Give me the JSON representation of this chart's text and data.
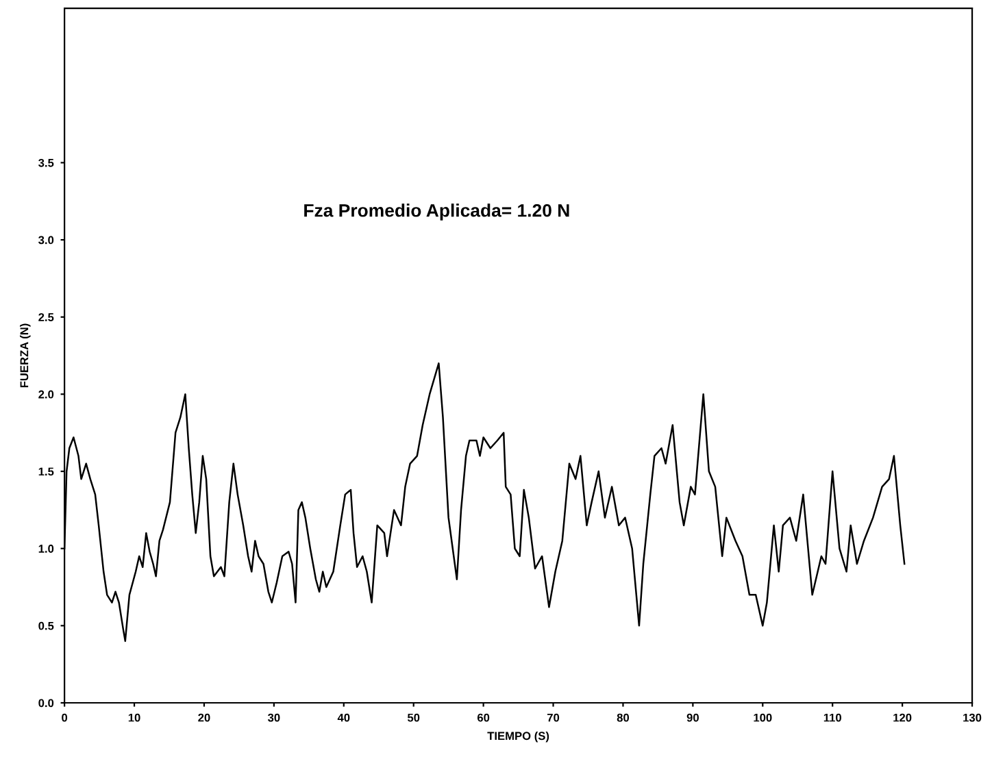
{
  "chart_data": {
    "type": "line",
    "xlabel": "TIEMPO (S)",
    "ylabel": "FUERZA (N)",
    "annotations": [
      "Fza Promedio Aplicada= 1.20 N"
    ],
    "xlim": [
      0,
      130
    ],
    "xticks": [
      0,
      10,
      20,
      30,
      40,
      50,
      60,
      70,
      80,
      90,
      100,
      110,
      120,
      130
    ],
    "ylim": [
      0,
      4.5
    ],
    "yticks": [
      {
        "value": 0,
        "label": "0.0"
      },
      {
        "value": 0.5,
        "label": "0.5"
      },
      {
        "value": 1,
        "label": "1.0"
      },
      {
        "value": 1.5,
        "label": "1.5"
      },
      {
        "value": 2,
        "label": "2.0"
      },
      {
        "value": 2.5,
        "label": "2.5"
      },
      {
        "value": 3,
        "label": "3.0"
      },
      {
        "value": 3.5,
        "label": "3.5"
      }
    ],
    "grid": false,
    "legend": false,
    "marker": "none",
    "line_style": "solid",
    "series": [
      {
        "color": "#000000",
        "x": [
          0,
          0.3,
          0.7,
          1.3,
          2,
          2.4,
          3.1,
          3.7,
          4.4,
          4.9,
          5.6,
          6.1,
          6.8,
          7.3,
          7.8,
          8.4,
          8.7,
          9.3,
          10.2,
          10.7,
          11.2,
          11.7,
          12.2,
          12.7,
          13.1,
          13.6,
          14.1,
          15.1,
          15.9,
          16.6,
          17.3,
          17.8,
          18.3,
          18.8,
          19.3,
          19.8,
          20.3,
          20.9,
          21.4,
          21.9,
          22.4,
          22.9,
          23.6,
          24.2,
          24.8,
          25.6,
          26.3,
          26.8,
          27.3,
          27.8,
          28.5,
          29.2,
          29.7,
          30.4,
          31.2,
          32.1,
          32.6,
          33.1,
          33.5,
          34,
          34.5,
          35.2,
          36,
          36.5,
          37,
          37.5,
          38,
          38.5,
          39,
          39.5,
          40.2,
          41,
          41.4,
          41.9,
          42.7,
          43.3,
          44,
          44.8,
          45.8,
          46.2,
          47.2,
          48.2,
          48.8,
          49.5,
          50.5,
          51.3,
          52.3,
          53.6,
          54.2,
          55,
          56.2,
          56.8,
          57.5,
          58,
          59,
          59.5,
          60,
          61,
          62,
          62.9,
          63.2,
          63.9,
          64.5,
          65.2,
          65.8,
          66.5,
          67.4,
          68.4,
          69.4,
          70.3,
          71.3,
          72.3,
          73.2,
          73.9,
          74.8,
          75.5,
          76.5,
          77.4,
          78.4,
          79.4,
          80.3,
          81.3,
          81.9,
          82.3,
          82.9,
          83.9,
          84.5,
          85.5,
          86.1,
          87.1,
          88.1,
          88.7,
          89.7,
          90.3,
          91.5,
          92.3,
          93.2,
          94.2,
          94.8,
          96.1,
          97.1,
          98.1,
          99,
          100,
          100.6,
          101.6,
          102.3,
          102.9,
          103.9,
          104.8,
          105.8,
          107.1,
          108.4,
          109,
          110,
          111,
          112,
          112.6,
          113.5,
          114.5,
          115.8,
          117.1,
          118.1,
          118.8,
          119.7,
          120.3
        ],
        "values": [
          1.0,
          1.5,
          1.65,
          1.72,
          1.6,
          1.45,
          1.55,
          1.45,
          1.35,
          1.15,
          0.85,
          0.7,
          0.65,
          0.72,
          0.65,
          0.48,
          0.4,
          0.7,
          0.85,
          0.95,
          0.88,
          1.1,
          0.98,
          0.9,
          0.82,
          1.05,
          1.12,
          1.3,
          1.75,
          1.85,
          2.0,
          1.65,
          1.35,
          1.1,
          1.3,
          1.6,
          1.45,
          0.95,
          0.82,
          0.85,
          0.88,
          0.82,
          1.3,
          1.55,
          1.35,
          1.15,
          0.95,
          0.85,
          1.05,
          0.95,
          0.9,
          0.72,
          0.65,
          0.78,
          0.95,
          0.98,
          0.9,
          0.65,
          1.25,
          1.3,
          1.2,
          1.0,
          0.8,
          0.72,
          0.85,
          0.75,
          0.8,
          0.85,
          1.0,
          1.15,
          1.35,
          1.38,
          1.1,
          0.88,
          0.95,
          0.85,
          0.65,
          1.15,
          1.1,
          0.95,
          1.25,
          1.15,
          1.4,
          1.55,
          1.6,
          1.8,
          2.0,
          2.2,
          1.85,
          1.2,
          0.8,
          1.25,
          1.6,
          1.7,
          1.7,
          1.6,
          1.72,
          1.65,
          1.7,
          1.75,
          1.4,
          1.35,
          1.0,
          0.95,
          1.38,
          1.2,
          0.87,
          0.95,
          0.62,
          0.85,
          1.05,
          1.55,
          1.45,
          1.6,
          1.15,
          1.3,
          1.5,
          1.2,
          1.4,
          1.15,
          1.2,
          1.0,
          0.7,
          0.5,
          0.9,
          1.35,
          1.6,
          1.65,
          1.55,
          1.8,
          1.3,
          1.15,
          1.4,
          1.35,
          2.0,
          1.5,
          1.4,
          0.95,
          1.2,
          1.05,
          0.95,
          0.7,
          0.7,
          0.5,
          0.65,
          1.15,
          0.85,
          1.15,
          1.2,
          1.05,
          1.35,
          0.7,
          0.95,
          0.9,
          1.5,
          1.0,
          0.85,
          1.15,
          0.9,
          1.05,
          1.2,
          1.4,
          1.45,
          1.6,
          1.15,
          0.9
        ]
      }
    ]
  }
}
